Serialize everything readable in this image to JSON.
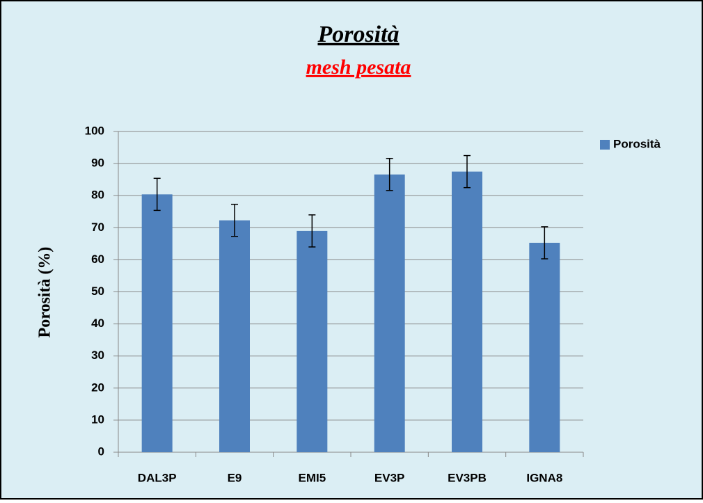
{
  "chart_data": {
    "type": "bar",
    "title": "Porosità",
    "subtitle": "mesh pesata",
    "y_label": "Porosità (%)",
    "categories": [
      "DAL3P",
      "E9",
      "EMI5",
      "EV3P",
      "EV3PB",
      "IGNA8"
    ],
    "series": [
      {
        "name": "Porosità",
        "color": "#4f81bd",
        "values": [
          80.4,
          72.3,
          69.0,
          86.6,
          87.5,
          65.3
        ],
        "errors": [
          5,
          5,
          5,
          5,
          5,
          5
        ]
      }
    ],
    "ylim": [
      0,
      100
    ],
    "yticks": [
      0,
      10,
      20,
      30,
      40,
      50,
      60,
      70,
      80,
      90,
      100
    ],
    "grid": true,
    "legend": "right"
  }
}
